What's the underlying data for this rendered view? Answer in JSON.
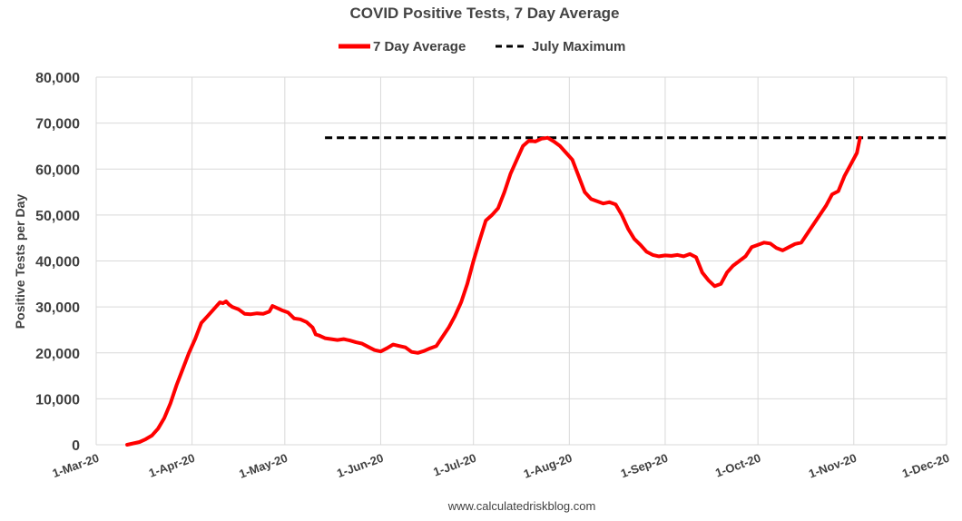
{
  "chart_data": {
    "type": "line",
    "title": "COVID Positive Tests, 7 Day Average",
    "xlabel": "",
    "ylabel": "Positive Tests per Day",
    "source": "www.calculatedriskblog.com",
    "ylim": [
      0,
      80000
    ],
    "xlim_days": [
      0,
      275
    ],
    "x_unit": "days since 1-Mar-20",
    "yticks": [
      {
        "value": 0,
        "label": "0"
      },
      {
        "value": 10000,
        "label": "10,000"
      },
      {
        "value": 20000,
        "label": "20,000"
      },
      {
        "value": 30000,
        "label": "30,000"
      },
      {
        "value": 40000,
        "label": "40,000"
      },
      {
        "value": 50000,
        "label": "50,000"
      },
      {
        "value": 60000,
        "label": "60,000"
      },
      {
        "value": 70000,
        "label": "70,000"
      },
      {
        "value": 80000,
        "label": "80,000"
      }
    ],
    "xticks": [
      {
        "day": 0,
        "label": "1-Mar-20"
      },
      {
        "day": 31,
        "label": "1-Apr-20"
      },
      {
        "day": 61,
        "label": "1-May-20"
      },
      {
        "day": 92,
        "label": "1-Jun-20"
      },
      {
        "day": 122,
        "label": "1-Jul-20"
      },
      {
        "day": 153,
        "label": "1-Aug-20"
      },
      {
        "day": 184,
        "label": "1-Sep-20"
      },
      {
        "day": 214,
        "label": "1-Oct-20"
      },
      {
        "day": 245,
        "label": "1-Nov-20"
      },
      {
        "day": 275,
        "label": "1-Dec-20"
      }
    ],
    "legend": {
      "placement": "top-center"
    },
    "series": [
      {
        "name": "7 Day Average",
        "color": "#ff0000",
        "style": "solid",
        "points": [
          [
            10,
            0
          ],
          [
            12,
            300
          ],
          [
            14,
            600
          ],
          [
            16,
            1200
          ],
          [
            18,
            2000
          ],
          [
            20,
            3500
          ],
          [
            22,
            5800
          ],
          [
            24,
            9000
          ],
          [
            26,
            13000
          ],
          [
            28,
            16500
          ],
          [
            30,
            20000
          ],
          [
            32,
            23000
          ],
          [
            34,
            26500
          ],
          [
            36,
            28000
          ],
          [
            38,
            29500
          ],
          [
            40,
            31000
          ],
          [
            41,
            30800
          ],
          [
            42,
            31200
          ],
          [
            43,
            30500
          ],
          [
            44,
            30000
          ],
          [
            46,
            29500
          ],
          [
            48,
            28500
          ],
          [
            50,
            28400
          ],
          [
            52,
            28600
          ],
          [
            54,
            28500
          ],
          [
            56,
            29000
          ],
          [
            57,
            30200
          ],
          [
            58,
            29900
          ],
          [
            60,
            29300
          ],
          [
            62,
            28800
          ],
          [
            64,
            27500
          ],
          [
            66,
            27300
          ],
          [
            68,
            26700
          ],
          [
            70,
            25500
          ],
          [
            71,
            24000
          ],
          [
            72,
            23800
          ],
          [
            74,
            23200
          ],
          [
            76,
            23000
          ],
          [
            78,
            22800
          ],
          [
            80,
            23000
          ],
          [
            82,
            22700
          ],
          [
            84,
            22300
          ],
          [
            86,
            22000
          ],
          [
            88,
            21300
          ],
          [
            90,
            20600
          ],
          [
            92,
            20300
          ],
          [
            94,
            21000
          ],
          [
            96,
            21800
          ],
          [
            98,
            21500
          ],
          [
            100,
            21200
          ],
          [
            102,
            20200
          ],
          [
            104,
            20000
          ],
          [
            106,
            20400
          ],
          [
            108,
            21000
          ],
          [
            110,
            21500
          ],
          [
            112,
            23500
          ],
          [
            114,
            25500
          ],
          [
            116,
            28000
          ],
          [
            118,
            31000
          ],
          [
            120,
            35000
          ],
          [
            122,
            40000
          ],
          [
            124,
            44500
          ],
          [
            126,
            48800
          ],
          [
            128,
            50000
          ],
          [
            130,
            51500
          ],
          [
            132,
            55000
          ],
          [
            134,
            59000
          ],
          [
            136,
            62000
          ],
          [
            138,
            65000
          ],
          [
            140,
            66200
          ],
          [
            142,
            66000
          ],
          [
            144,
            66600
          ],
          [
            146,
            66800
          ],
          [
            148,
            66000
          ],
          [
            150,
            65000
          ],
          [
            152,
            63500
          ],
          [
            154,
            62000
          ],
          [
            156,
            58500
          ],
          [
            158,
            55000
          ],
          [
            160,
            53500
          ],
          [
            162,
            53000
          ],
          [
            164,
            52500
          ],
          [
            166,
            52800
          ],
          [
            168,
            52300
          ],
          [
            170,
            50000
          ],
          [
            172,
            47000
          ],
          [
            174,
            44800
          ],
          [
            176,
            43500
          ],
          [
            178,
            42000
          ],
          [
            180,
            41300
          ],
          [
            182,
            41000
          ],
          [
            184,
            41200
          ],
          [
            186,
            41100
          ],
          [
            188,
            41300
          ],
          [
            190,
            41000
          ],
          [
            192,
            41500
          ],
          [
            194,
            40800
          ],
          [
            196,
            37500
          ],
          [
            198,
            35800
          ],
          [
            200,
            34500
          ],
          [
            202,
            35000
          ],
          [
            204,
            37500
          ],
          [
            206,
            39000
          ],
          [
            208,
            40000
          ],
          [
            210,
            41000
          ],
          [
            212,
            43000
          ],
          [
            214,
            43500
          ],
          [
            216,
            44000
          ],
          [
            218,
            43800
          ],
          [
            220,
            42800
          ],
          [
            222,
            42300
          ],
          [
            224,
            43000
          ],
          [
            226,
            43700
          ],
          [
            228,
            44000
          ],
          [
            230,
            46000
          ],
          [
            232,
            48000
          ],
          [
            234,
            50000
          ],
          [
            236,
            52000
          ],
          [
            238,
            54500
          ],
          [
            240,
            55200
          ],
          [
            242,
            58500
          ],
          [
            244,
            61000
          ],
          [
            246,
            63500
          ],
          [
            247,
            66800
          ]
        ]
      },
      {
        "name": "July Maximum",
        "color": "#000000",
        "style": "dashed",
        "points": [
          [
            74,
            66800
          ],
          [
            275,
            66800
          ]
        ]
      }
    ]
  }
}
